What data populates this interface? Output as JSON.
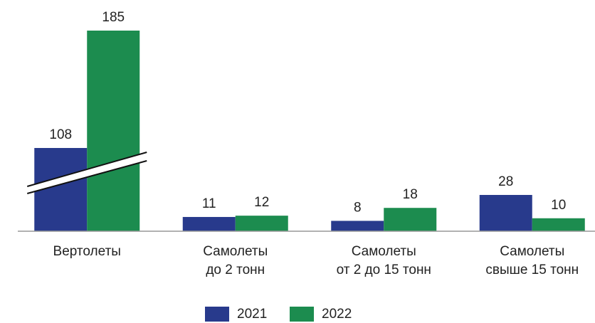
{
  "chart_data": {
    "type": "bar",
    "categories": [
      [
        "Вертолеты"
      ],
      [
        "Самолеты",
        "до 2 тонн"
      ],
      [
        "Самолеты",
        "от 2 до 15 тонн"
      ],
      [
        "Самолеты",
        "свыше 15 тонн"
      ]
    ],
    "series": [
      {
        "name": "2021",
        "color": "#283a8c",
        "values": [
          108,
          11,
          8,
          28
        ]
      },
      {
        "name": "2022",
        "color": "#1c8c4f",
        "values": [
          185,
          12,
          18,
          10
        ]
      }
    ],
    "axis_break": true,
    "legend": "bottom"
  }
}
